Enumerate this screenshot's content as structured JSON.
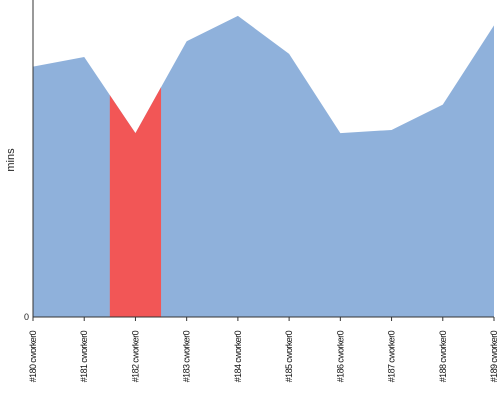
{
  "chart_data": {
    "type": "area",
    "ylabel": "mins",
    "y_tick_labels": [
      "0"
    ],
    "ylim": [
      0,
      100
    ],
    "categories": [
      "#180 cworker0",
      "#181 cworker0",
      "#182 cworker0",
      "#183 cworker0",
      "#184 cworker0",
      "#185 cworker0",
      "#186 cworker0",
      "#187 cworker0",
      "#188 cworker0",
      "#189 cworker0"
    ],
    "values": [
      79,
      82,
      58,
      87,
      95,
      83,
      58,
      59,
      67,
      92
    ],
    "highlight_index": 2,
    "colors": {
      "area": "#8fb1db",
      "highlight": "#f25656",
      "axis": "#333333"
    }
  }
}
